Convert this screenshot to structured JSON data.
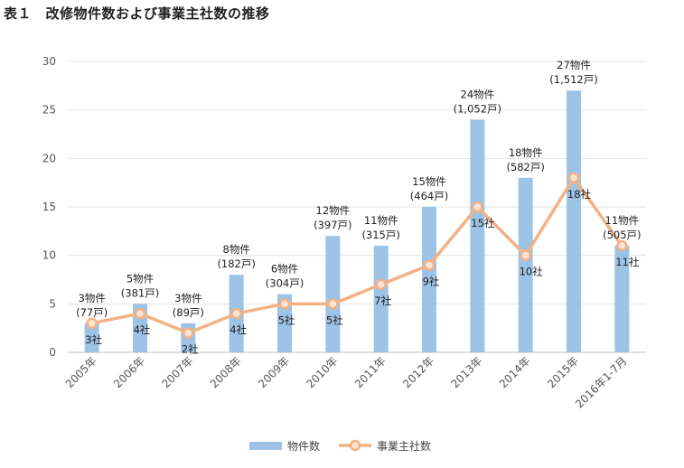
{
  "title": "表１　改修物件数および事業主社数の推移",
  "chart_data": {
    "type": "bar+line",
    "categories": [
      "2005年",
      "2006年",
      "2007年",
      "2008年",
      "2009年",
      "2010年",
      "2011年",
      "2012年",
      "2013年",
      "2014年",
      "2015年",
      "2016年1-7月"
    ],
    "series": [
      {
        "name": "物件数",
        "type": "bar",
        "color": "#9dc3e6",
        "values": [
          3,
          5,
          3,
          8,
          6,
          12,
          11,
          15,
          24,
          18,
          27,
          11
        ],
        "labels": [
          "3物件",
          "5物件",
          "3物件",
          "8物件",
          "6物件",
          "12物件",
          "11物件",
          "15物件",
          "24物件",
          "18物件",
          "27物件",
          "11物件"
        ],
        "sublabels": [
          "(77戸)",
          "(381戸)",
          "(89戸)",
          "(182戸)",
          "(304戸)",
          "(397戸)",
          "(315戸)",
          "(464戸)",
          "(1,052戸)",
          "(582戸)",
          "(1,512戸)",
          "(505戸)"
        ]
      },
      {
        "name": "事業主社数",
        "type": "line",
        "color": "#f4b183",
        "values": [
          3,
          4,
          2,
          4,
          5,
          5,
          7,
          9,
          15,
          10,
          18,
          11
        ],
        "labels": [
          "3社",
          "4社",
          "2社",
          "4社",
          "5社",
          "5社",
          "7社",
          "9社",
          "15社",
          "10社",
          "18社",
          "11社"
        ]
      }
    ],
    "yticks": [
      0,
      5,
      10,
      15,
      20,
      25,
      30
    ],
    "ylim": [
      0,
      30
    ],
    "legend": [
      "物件数",
      "事業主社数"
    ],
    "legend_position": "bottom"
  }
}
